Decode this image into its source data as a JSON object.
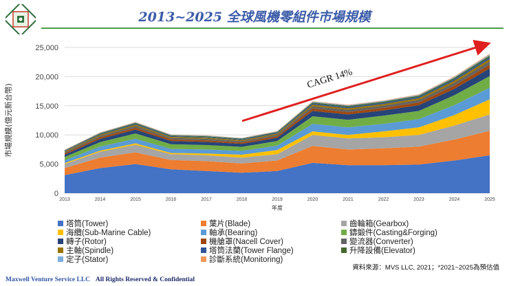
{
  "header": {
    "title": "2013~2025 全球風機零組件市場規模"
  },
  "footer": {
    "company": "Maxwell Venture Service LLC",
    "rights": "All Rights Reserved & Confidential"
  },
  "source_note": "資料來源：MVS LLC, 2021；*2021~2025為預估值",
  "chart_data": {
    "type": "area",
    "stacked": true,
    "title": "2013~2025 全球風機零組件市場規模",
    "xlabel": "年度",
    "ylabel": "市場規模(億元新台幣)",
    "ylim": [
      0,
      25000
    ],
    "yticks": [
      0,
      5000,
      10000,
      15000,
      20000,
      25000
    ],
    "ytick_labels": [
      "0",
      "5,000",
      "10,000",
      "15,000",
      "20,000",
      "25,000"
    ],
    "x": [
      "2013",
      "2014",
      "2015",
      "2016",
      "2017",
      "2018",
      "2019",
      "2020",
      "2021",
      "2022",
      "2023",
      "2024",
      "2025"
    ],
    "grid": true,
    "legend_position": "bottom",
    "annotation": {
      "text": "CAGR 14%",
      "from_year": "2018",
      "to_year": "2025"
    },
    "series": [
      {
        "name": "塔筒(Tower)",
        "color": "#4472c4",
        "values": [
          3100,
          4300,
          5000,
          4100,
          3800,
          3500,
          3800,
          5200,
          4800,
          4800,
          4900,
          5600,
          6500
        ]
      },
      {
        "name": "葉片(Blade)",
        "color": "#ed7d31",
        "values": [
          1200,
          1800,
          2000,
          1600,
          1700,
          1600,
          1800,
          2900,
          2700,
          2900,
          3100,
          3600,
          4200
        ]
      },
      {
        "name": "齒輪箱(Gearbox)",
        "color": "#a5a5a5",
        "values": [
          700,
          1000,
          1300,
          1000,
          1000,
          1000,
          1100,
          1900,
          1900,
          1900,
          2000,
          2400,
          2800
        ]
      },
      {
        "name": "海纜(Sub-Marine Cable)",
        "color": "#ffc000",
        "values": [
          150,
          200,
          250,
          200,
          300,
          500,
          700,
          600,
          600,
          1000,
          1300,
          1800,
          2600
        ]
      },
      {
        "name": "軸承(Bearing)",
        "color": "#5b9bd5",
        "values": [
          500,
          700,
          800,
          700,
          700,
          650,
          750,
          1300,
          1300,
          1300,
          1400,
          1700,
          2000
        ]
      },
      {
        "name": "鑄鍛件(Casting&Forging)",
        "color": "#70ad47",
        "values": [
          550,
          750,
          900,
          800,
          750,
          700,
          800,
          1300,
          1300,
          1400,
          1400,
          1700,
          2000
        ]
      },
      {
        "name": "轉子(Rotor)",
        "color": "#264478",
        "values": [
          400,
          550,
          650,
          550,
          550,
          500,
          550,
          900,
          900,
          900,
          1000,
          1100,
          1300
        ]
      },
      {
        "name": "機艙罩(Nacell Cover)",
        "color": "#9e480e",
        "values": [
          200,
          270,
          320,
          270,
          270,
          250,
          280,
          420,
          420,
          430,
          470,
          550,
          650
        ]
      },
      {
        "name": "變流器(Converter)",
        "color": "#636363",
        "values": [
          200,
          260,
          300,
          260,
          260,
          240,
          260,
          380,
          380,
          390,
          420,
          480,
          550
        ]
      },
      {
        "name": "主軸(Spindle)",
        "color": "#997300",
        "values": [
          150,
          190,
          230,
          190,
          190,
          180,
          200,
          280,
          280,
          290,
          310,
          360,
          420
        ]
      },
      {
        "name": "塔筒法蘭(Tower Flange)",
        "color": "#2f5597",
        "values": [
          100,
          130,
          160,
          130,
          130,
          120,
          140,
          200,
          200,
          200,
          220,
          250,
          300
        ]
      },
      {
        "name": "升降設備(Elevator)",
        "color": "#43682b",
        "values": [
          100,
          130,
          150,
          130,
          130,
          120,
          130,
          190,
          190,
          190,
          210,
          240,
          280
        ]
      },
      {
        "name": "定子(Stator)",
        "color": "#7cafdd",
        "values": [
          60,
          80,
          90,
          80,
          80,
          70,
          80,
          110,
          110,
          110,
          120,
          140,
          160
        ]
      },
      {
        "name": "診斷系統(Monitoring)",
        "color": "#f1975a",
        "values": [
          40,
          60,
          70,
          60,
          60,
          50,
          60,
          90,
          90,
          90,
          100,
          120,
          140
        ]
      }
    ]
  }
}
